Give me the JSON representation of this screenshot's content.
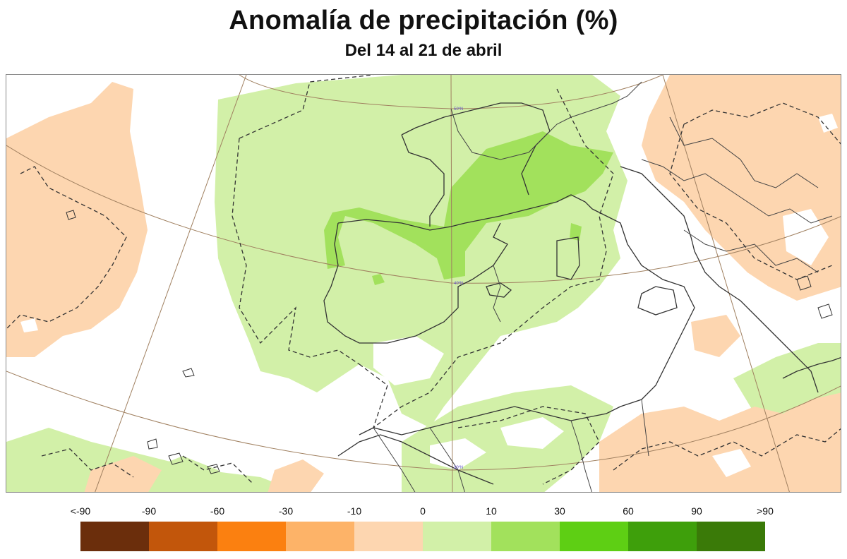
{
  "header": {
    "title": "Anomalía de precipitación (%)",
    "subtitle": "Del 14 al 21 de abril"
  },
  "map": {
    "latitude_labels": [
      "50ºN",
      "40ºN",
      "30ºN"
    ],
    "colors": {
      "land_outline": "#333333",
      "graticule": "#a08060",
      "contour": "#333333"
    }
  },
  "legend": {
    "labels": [
      "<-90",
      "-90",
      "-60",
      "-30",
      "-10",
      "0",
      "10",
      "30",
      "60",
      "90",
      ">90"
    ],
    "colors": [
      "#6b2e0c",
      "#c2560b",
      "#fb8010",
      "#fdb368",
      "#fdd6b0",
      "#d2f0a8",
      "#a2e15c",
      "#5ecf14",
      "#3e9f0b",
      "#3a7a08"
    ]
  }
}
